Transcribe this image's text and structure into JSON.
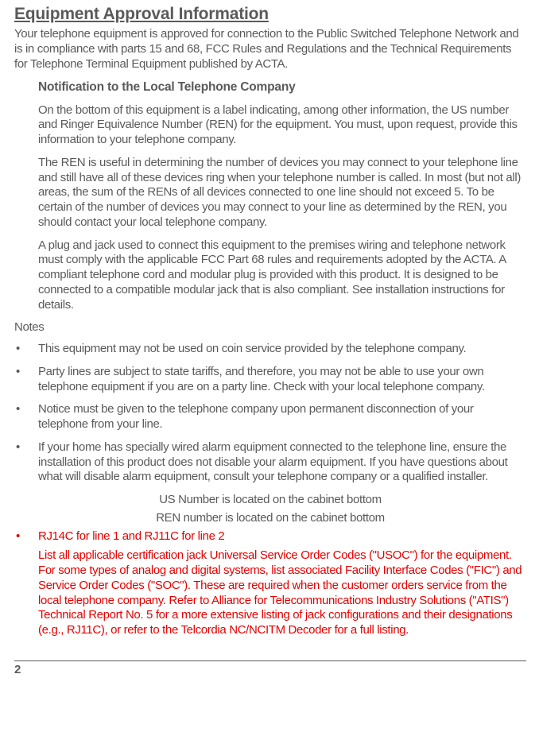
{
  "heading": "Equipment Approval Information",
  "intro": "Your telephone equipment is approved for connection to the Public Switched Telephone Network and is in compliance with parts 15 and 68, FCC Rules and Regulations and the Technical Requirements for Telephone Terminal Equipment published by ACTA.",
  "subhead1": "Notification to the Local Telephone Company",
  "para1": "On the bottom of this equipment is a label indicating, among other information, the US number and Ringer Equivalence Number (REN) for the equipment. You must, upon request, provide this information to your telephone company.",
  "para2": "The REN is useful in determining the number of devices you may connect to your telephone line and still have all of these devices ring when your telephone number is called. In most (but not all) areas, the sum of the RENs of all devices connected to one line should not exceed 5. To be certain of the number of devices you may connect to your line as determined by the REN, you should contact your local telephone company.",
  "para3": "A plug and jack used to connect this equipment to the premises wiring and telephone network must comply with the applicable FCC Part 68 rules and requirements adopted by the ACTA. A compliant telephone cord and modular plug is provided with this product. It is designed to be connected to a compatible modular jack that is also compliant. See installation instructions for details.",
  "notes_label": "Notes",
  "notes": [
    "This equipment may not be used on coin service provided by the telephone company.",
    "Party lines are subject to state tariffs, and therefore, you may not be able to use your own telephone equipment if you are on a party line. Check with your local telephone company.",
    "Notice must be given to the telephone company upon permanent disconnection of your telephone from your line.",
    "If your home has specially wired alarm equipment connected to the telephone line, ensure the installation of this product does not disable your alarm equipment. If you have questions about what will disable alarm equipment, consult your telephone company or a qualified installer."
  ],
  "center1": "US Number is located on the cabinet bottom",
  "center2": "REN number is located on the cabinet bottom",
  "red_bullet": "RJ14C for line 1 and RJ11C for line 2",
  "red_para": "List all applicable certification jack Universal Service Order Codes (\"USOC\") for the equipment. For some types of analog and digital systems, list associated Facility Interface Codes (\"FIC\") and Service Order Codes (\"SOC\"). These are required when the customer orders service from the local telephone company. Refer to Alliance for Telecommunications Industry Solutions (\"ATIS\") Technical Report No. 5 for a more extensive listing of jack configurations and their designations (e.g., RJ11C), or refer to the Telcordia NC/NCITM Decoder for a full listing.",
  "page_number": "2",
  "colors": {
    "text": "#5a5a5a",
    "highlight": "#e60000",
    "background": "#ffffff",
    "rule": "#5a5a5a"
  },
  "typography": {
    "heading_fontsize": 21,
    "body_fontsize": 15,
    "heading_weight": 700,
    "body_weight": 400
  }
}
